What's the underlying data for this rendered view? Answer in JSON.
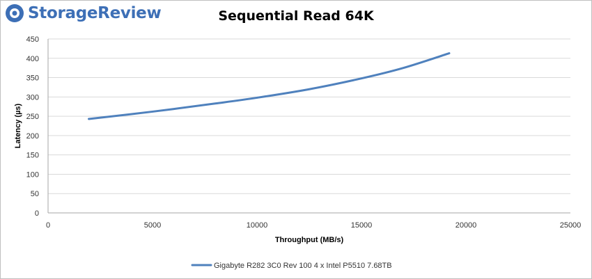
{
  "branding": {
    "logo_text": "StorageReview"
  },
  "colors": {
    "series": "#4f81bd",
    "grid": "#d9d9d9",
    "brand": "#3d6fb6"
  },
  "chart_data": {
    "type": "line",
    "title": "Sequential Read 64K",
    "xlabel": "Throughput (MB/s)",
    "ylabel": "Latency (µs)",
    "xlim": [
      0,
      25000
    ],
    "ylim": [
      0,
      450
    ],
    "x_ticks": [
      0,
      5000,
      10000,
      15000,
      20000,
      25000
    ],
    "y_ticks": [
      0,
      50,
      100,
      150,
      200,
      250,
      300,
      350,
      400,
      450
    ],
    "grid": true,
    "legend_position": "bottom",
    "series": [
      {
        "name": "Gigabyte R282 3C0 Rev 100 4 x Intel P5510 7.68TB",
        "x": [
          1950,
          5000,
          8000,
          10000,
          12500,
          15000,
          17000,
          19200
        ],
        "y": [
          243,
          262,
          283,
          298,
          320,
          348,
          375,
          413
        ]
      }
    ]
  }
}
